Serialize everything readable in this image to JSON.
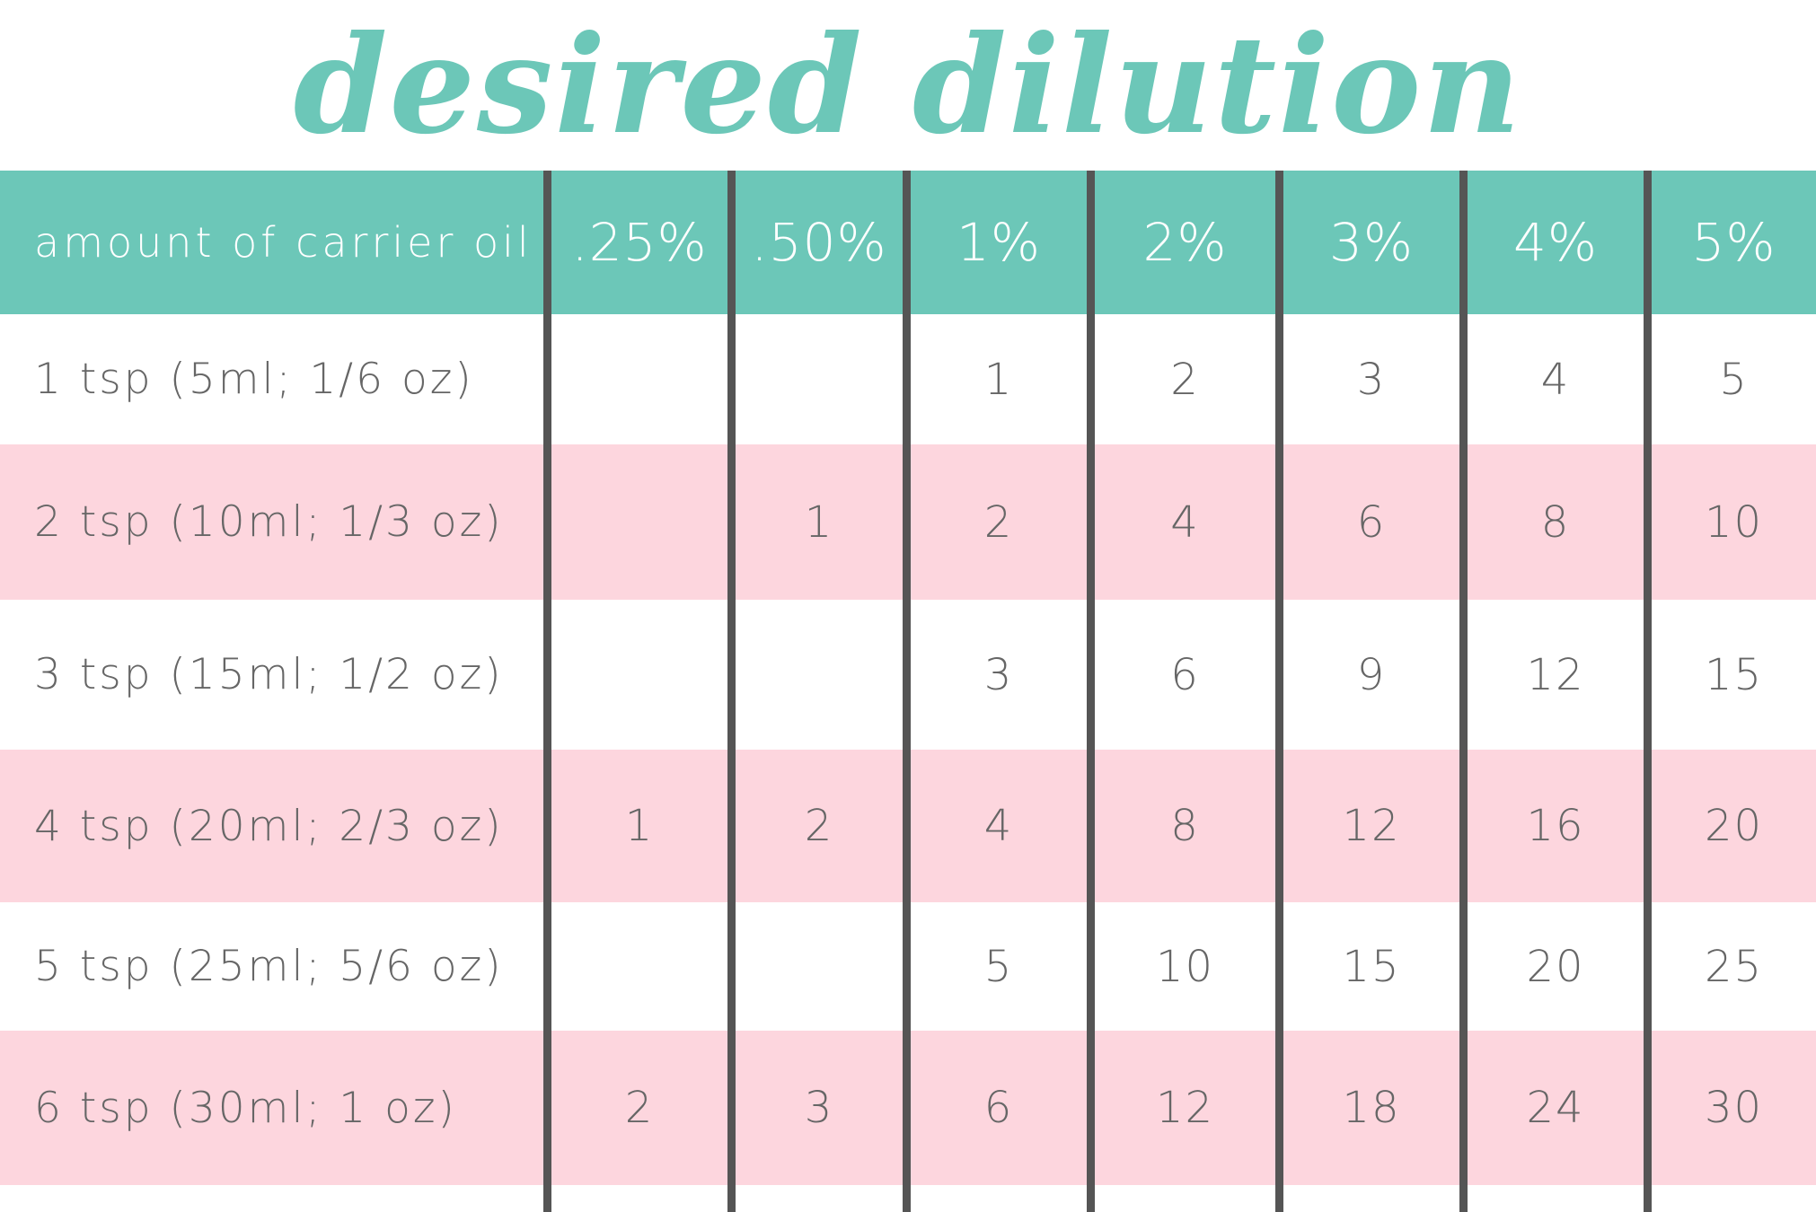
{
  "title": "desired dilution",
  "colors": {
    "accent": "#6cc7b8",
    "row_pink": "#fdd6de",
    "divider": "#555555",
    "text": "#666666"
  },
  "table": {
    "header": {
      "label": "amount of carrier oil",
      "columns": [
        ".25%",
        ".50%",
        "1%",
        "2%",
        "3%",
        "4%",
        "5%"
      ]
    },
    "rows": [
      {
        "label": "1 tsp (5ml; 1/6 oz)",
        "values": [
          "",
          "",
          "1",
          "2",
          "3",
          "4",
          "5"
        ]
      },
      {
        "label": "2 tsp (10ml; 1/3 oz)",
        "values": [
          "",
          "1",
          "2",
          "4",
          "6",
          "8",
          "10"
        ]
      },
      {
        "label": "3 tsp (15ml; 1/2 oz)",
        "values": [
          "",
          "",
          "3",
          "6",
          "9",
          "12",
          "15"
        ]
      },
      {
        "label": "4 tsp (20ml; 2/3 oz)",
        "values": [
          "1",
          "2",
          "4",
          "8",
          "12",
          "16",
          "20"
        ]
      },
      {
        "label": "5 tsp (25ml; 5/6 oz)",
        "values": [
          "",
          "",
          "5",
          "10",
          "15",
          "20",
          "25"
        ]
      },
      {
        "label": "6 tsp (30ml; 1 oz)",
        "values": [
          "2",
          "3",
          "6",
          "12",
          "18",
          "24",
          "30"
        ]
      }
    ]
  }
}
